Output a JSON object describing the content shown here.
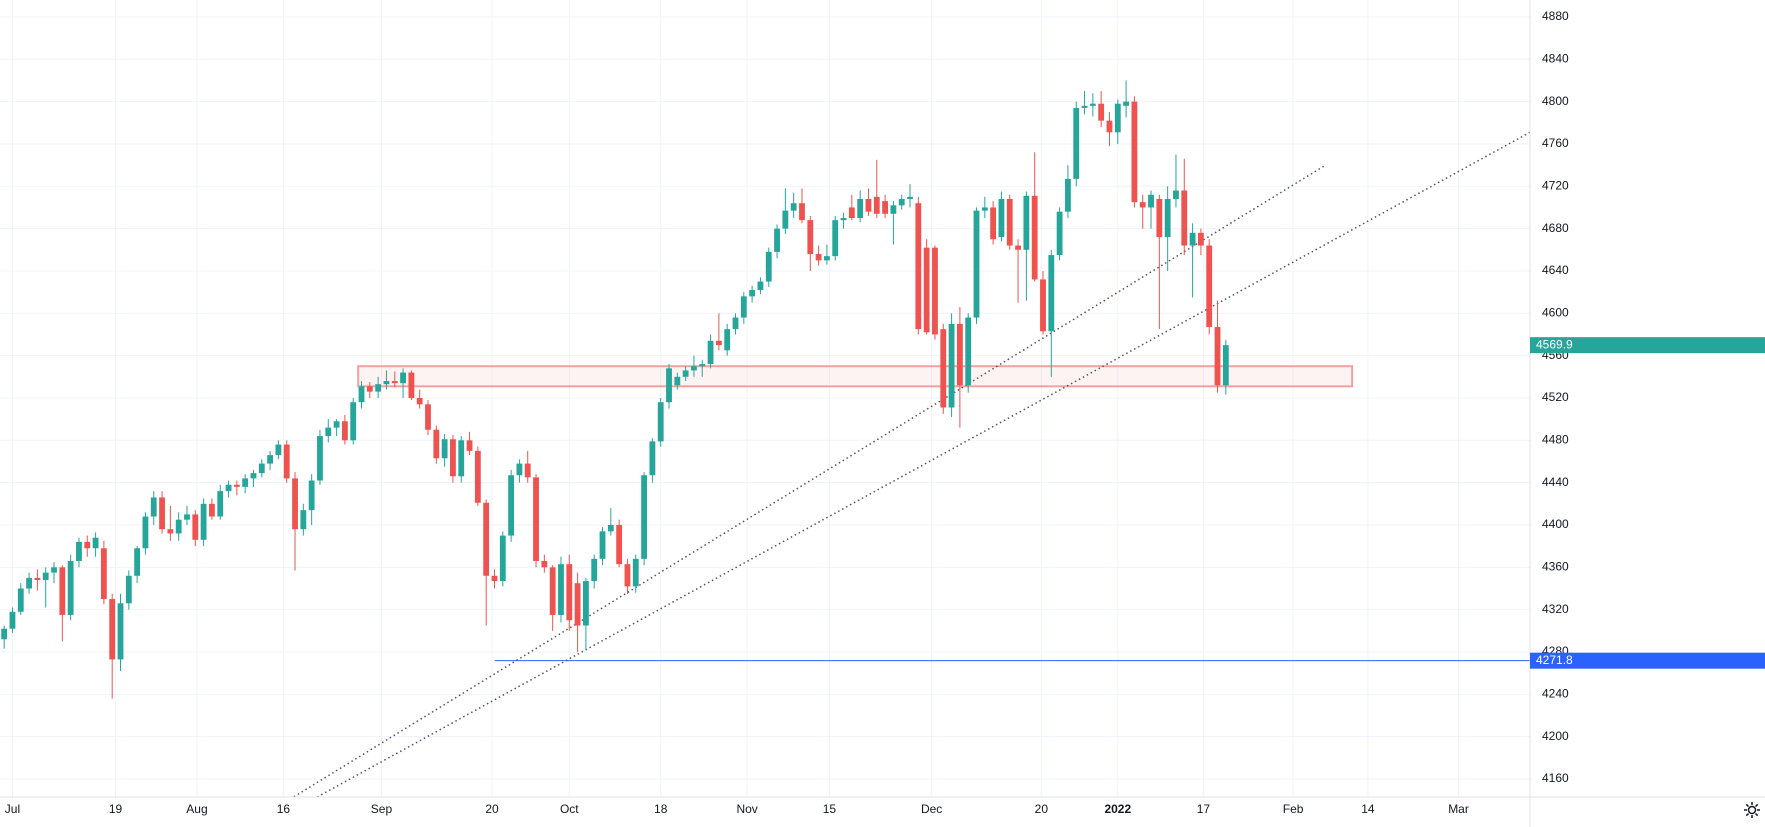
{
  "chart_data": {
    "type": "candlestick",
    "up_color": "#26a69a",
    "down_color": "#ef5350",
    "grid": true,
    "xlim": [
      -0.5,
      183.6
    ],
    "ylim": [
      4143,
      4896
    ],
    "yticks": [
      4160,
      4200,
      4240,
      4280,
      4320,
      4360,
      4400,
      4440,
      4480,
      4520,
      4560,
      4600,
      4640,
      4680,
      4720,
      4760,
      4800,
      4840,
      4880
    ],
    "xticks": [
      {
        "value": 1,
        "label": "Jul"
      },
      {
        "value": 13.4,
        "label": "19"
      },
      {
        "value": 23.2,
        "label": "Aug"
      },
      {
        "value": 33.6,
        "label": "16"
      },
      {
        "value": 45.4,
        "label": "Sep"
      },
      {
        "value": 58.7,
        "label": "20"
      },
      {
        "value": 68,
        "label": "Oct"
      },
      {
        "value": 79,
        "label": "18"
      },
      {
        "value": 89.4,
        "label": "Nov"
      },
      {
        "value": 99.3,
        "label": "15"
      },
      {
        "value": 111.6,
        "label": "Dec"
      },
      {
        "value": 124.8,
        "label": "20"
      },
      {
        "value": 134,
        "label": "2022"
      },
      {
        "value": 144.3,
        "label": "17"
      },
      {
        "value": 155.1,
        "label": "Feb"
      },
      {
        "value": 164.1,
        "label": "14"
      },
      {
        "value": 175,
        "label": "Mar"
      }
    ],
    "candles": [
      [
        4292,
        4305,
        4283,
        4302
      ],
      [
        4302,
        4322,
        4298,
        4318
      ],
      [
        4318,
        4345,
        4315,
        4340
      ],
      [
        4340,
        4355,
        4335,
        4350
      ],
      [
        4350,
        4358,
        4338,
        4348
      ],
      [
        4348,
        4360,
        4322,
        4355
      ],
      [
        4355,
        4365,
        4345,
        4360
      ],
      [
        4360,
        4362,
        4290,
        4315
      ],
      [
        4315,
        4372,
        4310,
        4366
      ],
      [
        4366,
        4388,
        4360,
        4384
      ],
      [
        4384,
        4390,
        4370,
        4378
      ],
      [
        4378,
        4393,
        4370,
        4388
      ],
      [
        4378,
        4385,
        4325,
        4330
      ],
      [
        4330,
        4335,
        4236,
        4273
      ],
      [
        4273,
        4335,
        4262,
        4326
      ],
      [
        4326,
        4357,
        4320,
        4352
      ],
      [
        4352,
        4380,
        4345,
        4378
      ],
      [
        4378,
        4412,
        4372,
        4408
      ],
      [
        4408,
        4432,
        4400,
        4426
      ],
      [
        4426,
        4432,
        4392,
        4396
      ],
      [
        4396,
        4418,
        4385,
        4392
      ],
      [
        4392,
        4412,
        4385,
        4405
      ],
      [
        4405,
        4418,
        4400,
        4410
      ],
      [
        4410,
        4414,
        4380,
        4386
      ],
      [
        4386,
        4425,
        4380,
        4420
      ],
      [
        4420,
        4425,
        4405,
        4408
      ],
      [
        4408,
        4438,
        4405,
        4432
      ],
      [
        4432,
        4442,
        4426,
        4438
      ],
      [
        4438,
        4442,
        4428,
        4436
      ],
      [
        4436,
        4448,
        4430,
        4444
      ],
      [
        4444,
        4452,
        4436,
        4449
      ],
      [
        4449,
        4462,
        4445,
        4458
      ],
      [
        4458,
        4470,
        4452,
        4466
      ],
      [
        4466,
        4480,
        4462,
        4476
      ],
      [
        4476,
        4480,
        4440,
        4444
      ],
      [
        4444,
        4450,
        4357,
        4396
      ],
      [
        4396,
        4420,
        4390,
        4414
      ],
      [
        4414,
        4448,
        4400,
        4442
      ],
      [
        4442,
        4490,
        4438,
        4484
      ],
      [
        4484,
        4500,
        4478,
        4492
      ],
      [
        4492,
        4500,
        4484,
        4498
      ],
      [
        4498,
        4504,
        4476,
        4480
      ],
      [
        4480,
        4520,
        4476,
        4516
      ],
      [
        4516,
        4536,
        4510,
        4531
      ],
      [
        4531,
        4535,
        4520,
        4526
      ],
      [
        4526,
        4540,
        4520,
        4533
      ],
      [
        4533,
        4546,
        4528,
        4536
      ],
      [
        4536,
        4545,
        4530,
        4534
      ],
      [
        4534,
        4548,
        4520,
        4544
      ],
      [
        4544,
        4546,
        4518,
        4520
      ],
      [
        4520,
        4528,
        4510,
        4514
      ],
      [
        4514,
        4518,
        4485,
        4490
      ],
      [
        4490,
        4494,
        4458,
        4463
      ],
      [
        4463,
        4486,
        4455,
        4481
      ],
      [
        4481,
        4485,
        4440,
        4446
      ],
      [
        4446,
        4484,
        4440,
        4480
      ],
      [
        4480,
        4488,
        4466,
        4470
      ],
      [
        4470,
        4474,
        4418,
        4421
      ],
      [
        4421,
        4424,
        4305,
        4352
      ],
      [
        4352,
        4358,
        4340,
        4347
      ],
      [
        4347,
        4394,
        4342,
        4390
      ],
      [
        4390,
        4452,
        4384,
        4447
      ],
      [
        4447,
        4462,
        4440,
        4458
      ],
      [
        4458,
        4470,
        4440,
        4445
      ],
      [
        4445,
        4448,
        4360,
        4366
      ],
      [
        4366,
        4372,
        4355,
        4360
      ],
      [
        4360,
        4362,
        4300,
        4315
      ],
      [
        4315,
        4370,
        4308,
        4363
      ],
      [
        4363,
        4372,
        4300,
        4310
      ],
      [
        4345,
        4355,
        4280,
        4305
      ],
      [
        4305,
        4350,
        4282,
        4347
      ],
      [
        4347,
        4372,
        4340,
        4368
      ],
      [
        4368,
        4398,
        4362,
        4394
      ],
      [
        4394,
        4416,
        4390,
        4400
      ],
      [
        4400,
        4405,
        4360,
        4363
      ],
      [
        4363,
        4368,
        4335,
        4342
      ],
      [
        4342,
        4372,
        4336,
        4368
      ],
      [
        4368,
        4450,
        4362,
        4447
      ],
      [
        4447,
        4482,
        4440,
        4479
      ],
      [
        4479,
        4520,
        4474,
        4516
      ],
      [
        4516,
        4552,
        4510,
        4548
      ],
      [
        4532,
        4544,
        4528,
        4540
      ],
      [
        4540,
        4550,
        4536,
        4546
      ],
      [
        4546,
        4560,
        4540,
        4550
      ],
      [
        4550,
        4556,
        4540,
        4552
      ],
      [
        4552,
        4580,
        4548,
        4574
      ],
      [
        4574,
        4600,
        4565,
        4570
      ],
      [
        4565,
        4590,
        4560,
        4585
      ],
      [
        4585,
        4600,
        4580,
        4596
      ],
      [
        4596,
        4620,
        4590,
        4616
      ],
      [
        4616,
        4626,
        4610,
        4622
      ],
      [
        4622,
        4634,
        4618,
        4630
      ],
      [
        4630,
        4662,
        4625,
        4658
      ],
      [
        4658,
        4684,
        4652,
        4680
      ],
      [
        4680,
        4718,
        4675,
        4697
      ],
      [
        4697,
        4714,
        4690,
        4704
      ],
      [
        4704,
        4718,
        4685,
        4688
      ],
      [
        4688,
        4692,
        4640,
        4656
      ],
      [
        4656,
        4664,
        4645,
        4650
      ],
      [
        4650,
        4665,
        4646,
        4654
      ],
      [
        4654,
        4692,
        4650,
        4688
      ],
      [
        4688,
        4695,
        4680,
        4690
      ],
      [
        4700,
        4712,
        4688,
        4690
      ],
      [
        4690,
        4716,
        4686,
        4708
      ],
      [
        4708,
        4718,
        4692,
        4696
      ],
      [
        4710,
        4745,
        4690,
        4694
      ],
      [
        4706,
        4712,
        4690,
        4694
      ],
      [
        4694,
        4706,
        4665,
        4702
      ],
      [
        4702,
        4712,
        4698,
        4708
      ],
      [
        4708,
        4722,
        4700,
        4710
      ],
      [
        4704,
        4710,
        4580,
        4585
      ],
      [
        4662,
        4670,
        4580,
        4582
      ],
      [
        4662,
        4664,
        4575,
        4580
      ],
      [
        4585,
        4590,
        4505,
        4511
      ],
      [
        4511,
        4600,
        4502,
        4590
      ],
      [
        4590,
        4606,
        4492,
        4532
      ],
      [
        4532,
        4600,
        4525,
        4596
      ],
      [
        4596,
        4700,
        4590,
        4697
      ],
      [
        4697,
        4710,
        4690,
        4700
      ],
      [
        4700,
        4706,
        4665,
        4670
      ],
      [
        4672,
        4715,
        4668,
        4708
      ],
      [
        4708,
        4712,
        4660,
        4664
      ],
      [
        4664,
        4670,
        4610,
        4660
      ],
      [
        4660,
        4715,
        4612,
        4711
      ],
      [
        4711,
        4752,
        4630,
        4632
      ],
      [
        4632,
        4640,
        4580,
        4583
      ],
      [
        4583,
        4660,
        4540,
        4655
      ],
      [
        4655,
        4700,
        4650,
        4696
      ],
      [
        4696,
        4740,
        4690,
        4727
      ],
      [
        4727,
        4800,
        4720,
        4794
      ],
      [
        4794,
        4810,
        4788,
        4796
      ],
      [
        4796,
        4808,
        4786,
        4798
      ],
      [
        4798,
        4810,
        4776,
        4782
      ],
      [
        4782,
        4790,
        4758,
        4771
      ],
      [
        4771,
        4802,
        4760,
        4798
      ],
      [
        4796,
        4820,
        4785,
        4800
      ],
      [
        4800,
        4805,
        4700,
        4705
      ],
      [
        4705,
        4712,
        4680,
        4700
      ],
      [
        4700,
        4716,
        4680,
        4712
      ],
      [
        4708,
        4712,
        4585,
        4672
      ],
      [
        4672,
        4720,
        4640,
        4708
      ],
      [
        4708,
        4750,
        4700,
        4716
      ],
      [
        4716,
        4746,
        4655,
        4664
      ],
      [
        4664,
        4685,
        4615,
        4676
      ],
      [
        4676,
        4680,
        4655,
        4664
      ],
      [
        4664,
        4670,
        4580,
        4587
      ],
      [
        4587,
        4612,
        4525,
        4532
      ],
      [
        4532,
        4575,
        4523,
        4569.9
      ]
    ],
    "zone": {
      "xmin": 42.6,
      "xmax": 162.2,
      "ymin": 4531,
      "ymax": 4550,
      "color": "#f4a0a0"
    },
    "hline": {
      "value": 4271.8,
      "xmin": 59,
      "color": "#2962ff"
    },
    "trendlines": [
      {
        "x": [
          34.4,
          159
        ],
        "y": [
          4141,
          4740
        ],
        "color": "#555"
      },
      {
        "x": [
          37.2,
          183.6
        ],
        "y": [
          4141,
          4771
        ],
        "color": "#555"
      }
    ]
  }
}
